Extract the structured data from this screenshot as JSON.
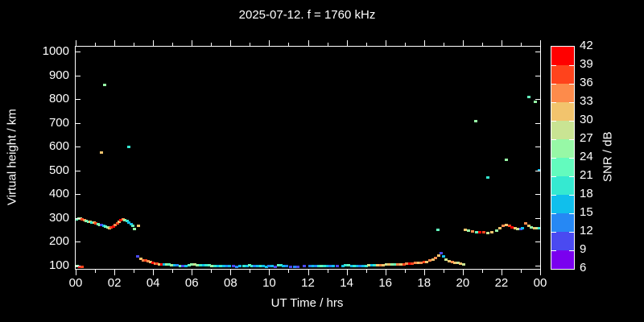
{
  "title": "2025-07-12. f = 1760 kHz",
  "colors": {
    "background": "#000000",
    "text": "#ffffff",
    "axis": "#ffffff"
  },
  "chart_data": {
    "type": "scatter",
    "title": "2025-07-12. f = 1760 kHz",
    "xlabel": "UT Time / hrs",
    "ylabel": "Virtual height / km",
    "colorbar_label": "SNR / dB",
    "xlim": [
      0,
      24
    ],
    "ylim": [
      86,
      1022
    ],
    "x_major_tick_hours": [
      0,
      2,
      4,
      6,
      8,
      10,
      12,
      14,
      16,
      18,
      20,
      22,
      24
    ],
    "x_tick_labels": [
      "00",
      "02",
      "04",
      "06",
      "08",
      "10",
      "12",
      "14",
      "16",
      "18",
      "20",
      "22",
      "00"
    ],
    "x_minor_every_hours": 1,
    "y_ticks": [
      100,
      200,
      300,
      400,
      500,
      600,
      700,
      800,
      900,
      1000
    ],
    "grid": false,
    "legend_position": "colorbar-right",
    "colorbar": {
      "min": 6,
      "max": 42,
      "step": 3,
      "tick_labels_top_to_bottom": [
        "42",
        "39",
        "36",
        "33",
        "30",
        "27",
        "24",
        "21",
        "18",
        "15",
        "12",
        "9",
        "6"
      ],
      "segment_colors_low_to_high": [
        "#7A00EF",
        "#4A4AF1",
        "#2688F4",
        "#10BFEC",
        "#35E9D1",
        "#63FBBE",
        "#97F8A6",
        "#C9E493",
        "#F2C46D",
        "#FD8B4B",
        "#FF431C",
        "#FF0000"
      ]
    },
    "points_format": [
      "ut_hours",
      "virtual_height_km",
      "snr_db"
    ],
    "points": [
      [
        0.08,
        97,
        26
      ],
      [
        0.2,
        94,
        41
      ],
      [
        0.32,
        93,
        38
      ],
      [
        0.05,
        296,
        23
      ],
      [
        0.15,
        299,
        26
      ],
      [
        0.25,
        297,
        29
      ],
      [
        0.35,
        293,
        38
      ],
      [
        0.45,
        291,
        35
      ],
      [
        0.55,
        289,
        26
      ],
      [
        0.65,
        286,
        23
      ],
      [
        0.75,
        284,
        32
      ],
      [
        0.85,
        282,
        20
      ],
      [
        0.95,
        280,
        32
      ],
      [
        1.05,
        278,
        38
      ],
      [
        1.15,
        275,
        23
      ],
      [
        1.25,
        272,
        26
      ],
      [
        1.35,
        270,
        11
      ],
      [
        1.45,
        267,
        17
      ],
      [
        1.55,
        263,
        23
      ],
      [
        1.65,
        259,
        26
      ],
      [
        1.75,
        257,
        32
      ],
      [
        1.85,
        261,
        38
      ],
      [
        1.95,
        265,
        41
      ],
      [
        2.05,
        270,
        35
      ],
      [
        2.15,
        277,
        38
      ],
      [
        2.25,
        284,
        32
      ],
      [
        2.35,
        290,
        41
      ],
      [
        2.45,
        295,
        35
      ],
      [
        2.55,
        291,
        26
      ],
      [
        2.65,
        287,
        20
      ],
      [
        2.75,
        281,
        17
      ],
      [
        2.85,
        275,
        17
      ],
      [
        2.95,
        269,
        23
      ],
      [
        3.05,
        255,
        26
      ],
      [
        3.25,
        268,
        32
      ],
      [
        1.33,
        575,
        32
      ],
      [
        1.5,
        860,
        26
      ],
      [
        2.75,
        600,
        20
      ],
      [
        3.2,
        137,
        11
      ],
      [
        3.35,
        128,
        32
      ],
      [
        3.5,
        122,
        35
      ],
      [
        3.62,
        120,
        38
      ],
      [
        3.75,
        117,
        35
      ],
      [
        3.87,
        114,
        32
      ],
      [
        4.0,
        111,
        41
      ],
      [
        4.1,
        109,
        35
      ],
      [
        4.2,
        107,
        38
      ],
      [
        4.32,
        106,
        32
      ],
      [
        4.45,
        105,
        41
      ],
      [
        4.57,
        104,
        17
      ],
      [
        4.7,
        103,
        26
      ],
      [
        4.82,
        103,
        23
      ],
      [
        4.95,
        102,
        26
      ],
      [
        5.1,
        101,
        17
      ],
      [
        5.25,
        100,
        14
      ],
      [
        5.4,
        99,
        23
      ],
      [
        5.55,
        97,
        11
      ],
      [
        5.7,
        98,
        17
      ],
      [
        5.85,
        101,
        23
      ],
      [
        6.0,
        103,
        26
      ],
      [
        6.15,
        103,
        29
      ],
      [
        6.3,
        102,
        26
      ],
      [
        6.45,
        101,
        20
      ],
      [
        6.6,
        100,
        17
      ],
      [
        6.75,
        100,
        20
      ],
      [
        6.9,
        100,
        23
      ],
      [
        7.05,
        99,
        26
      ],
      [
        7.2,
        99,
        20
      ],
      [
        7.35,
        98,
        17
      ],
      [
        7.5,
        98,
        20
      ],
      [
        7.65,
        98,
        17
      ],
      [
        7.8,
        97,
        14
      ],
      [
        7.95,
        97,
        17
      ],
      [
        8.15,
        97,
        11
      ],
      [
        8.3,
        96,
        14
      ],
      [
        8.5,
        97,
        17
      ],
      [
        8.7,
        98,
        20
      ],
      [
        8.85,
        99,
        17
      ],
      [
        9.0,
        100,
        23
      ],
      [
        9.1,
        99,
        20
      ],
      [
        9.25,
        98,
        14
      ],
      [
        9.4,
        97,
        17
      ],
      [
        9.55,
        97,
        20
      ],
      [
        9.7,
        97,
        17
      ],
      [
        9.85,
        96,
        17
      ],
      [
        10.0,
        97,
        14
      ],
      [
        10.15,
        97,
        17
      ],
      [
        10.3,
        96,
        11
      ],
      [
        10.5,
        101,
        23
      ],
      [
        10.62,
        100,
        20
      ],
      [
        10.75,
        98,
        17
      ],
      [
        10.9,
        97,
        14
      ],
      [
        11.1,
        96,
        11
      ],
      [
        11.3,
        96,
        14
      ],
      [
        11.5,
        96,
        11
      ],
      [
        11.8,
        97,
        11
      ],
      [
        12.1,
        97,
        14
      ],
      [
        12.25,
        98,
        17
      ],
      [
        12.4,
        97,
        14
      ],
      [
        12.55,
        98,
        20
      ],
      [
        12.7,
        99,
        23
      ],
      [
        12.85,
        99,
        20
      ],
      [
        13.0,
        98,
        17
      ],
      [
        13.15,
        98,
        14
      ],
      [
        13.3,
        97,
        17
      ],
      [
        13.5,
        97,
        11
      ],
      [
        13.8,
        99,
        17
      ],
      [
        13.95,
        100,
        20
      ],
      [
        14.1,
        100,
        23
      ],
      [
        14.25,
        99,
        17
      ],
      [
        14.4,
        98,
        20
      ],
      [
        14.55,
        98,
        17
      ],
      [
        14.7,
        98,
        14
      ],
      [
        14.85,
        99,
        17
      ],
      [
        15.0,
        99,
        20
      ],
      [
        15.15,
        100,
        29
      ],
      [
        15.3,
        100,
        17
      ],
      [
        15.45,
        100,
        20
      ],
      [
        15.6,
        101,
        32
      ],
      [
        15.75,
        102,
        35
      ],
      [
        15.9,
        102,
        32
      ],
      [
        16.05,
        103,
        29
      ],
      [
        16.2,
        103,
        32
      ],
      [
        16.35,
        104,
        26
      ],
      [
        16.5,
        104,
        23
      ],
      [
        16.65,
        105,
        35
      ],
      [
        16.8,
        105,
        32
      ],
      [
        16.95,
        106,
        38
      ],
      [
        17.1,
        107,
        35
      ],
      [
        17.25,
        107,
        41
      ],
      [
        17.4,
        108,
        38
      ],
      [
        17.55,
        110,
        35
      ],
      [
        17.7,
        111,
        32
      ],
      [
        17.85,
        113,
        35
      ],
      [
        18.0,
        114,
        38
      ],
      [
        18.15,
        116,
        32
      ],
      [
        18.3,
        120,
        35
      ],
      [
        18.45,
        124,
        32
      ],
      [
        18.6,
        131,
        35
      ],
      [
        18.75,
        141,
        32
      ],
      [
        18.88,
        151,
        11
      ],
      [
        19.0,
        137,
        17
      ],
      [
        19.15,
        124,
        29
      ],
      [
        19.3,
        118,
        32
      ],
      [
        19.45,
        114,
        35
      ],
      [
        19.6,
        112,
        32
      ],
      [
        19.75,
        110,
        29
      ],
      [
        19.9,
        108,
        32
      ],
      [
        20.05,
        106,
        29
      ],
      [
        18.7,
        252,
        23
      ],
      [
        20.15,
        249,
        32
      ],
      [
        20.3,
        246,
        26
      ],
      [
        20.5,
        243,
        35
      ],
      [
        20.7,
        242,
        23
      ],
      [
        20.9,
        240,
        41
      ],
      [
        21.1,
        239,
        38
      ],
      [
        21.3,
        236,
        29
      ],
      [
        21.5,
        240,
        32
      ],
      [
        21.75,
        248,
        26
      ],
      [
        21.9,
        258,
        32
      ],
      [
        22.1,
        268,
        35
      ],
      [
        22.25,
        272,
        32
      ],
      [
        22.4,
        266,
        38
      ],
      [
        22.55,
        261,
        41
      ],
      [
        22.7,
        258,
        32
      ],
      [
        22.85,
        255,
        29
      ],
      [
        23.0,
        253,
        11
      ],
      [
        23.1,
        258,
        17
      ],
      [
        23.25,
        276,
        35
      ],
      [
        23.4,
        266,
        32
      ],
      [
        23.55,
        262,
        26
      ],
      [
        23.7,
        258,
        32
      ],
      [
        23.85,
        257,
        29
      ],
      [
        23.96,
        258,
        20
      ],
      [
        20.67,
        710,
        26
      ],
      [
        21.3,
        470,
        20
      ],
      [
        22.25,
        545,
        26
      ],
      [
        23.4,
        810,
        23
      ],
      [
        23.75,
        790,
        26
      ],
      [
        23.96,
        500,
        17
      ]
    ]
  }
}
